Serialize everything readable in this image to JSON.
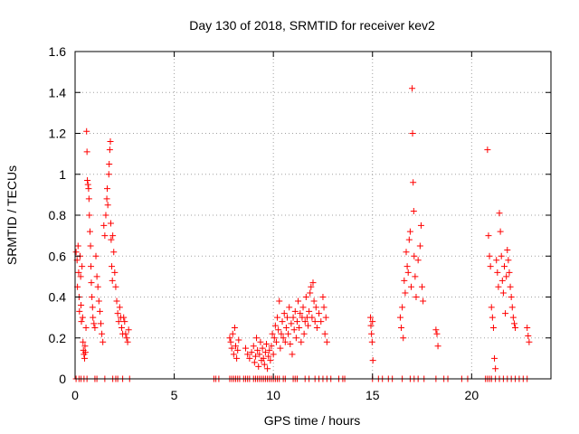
{
  "chart_data": {
    "type": "scatter",
    "title": "Day 130 of 2018, SRMTID for receiver kev2",
    "xlabel": "GPS time / hours",
    "ylabel": "SRMTID / TECUs",
    "xlim": [
      0,
      24
    ],
    "ylim": [
      0,
      1.6
    ],
    "xticks": [
      0,
      5,
      10,
      15,
      20
    ],
    "xtick_labels": [
      "0",
      "5",
      "10",
      "15",
      "20"
    ],
    "yticks": [
      0,
      0.2,
      0.4,
      0.6,
      0.8,
      1,
      1.2,
      1.4,
      1.6
    ],
    "ytick_labels": [
      "0",
      "0.2",
      "0.4",
      "0.6",
      "0.8",
      "1",
      "1.2",
      "1.4",
      "1.6"
    ],
    "grid": true,
    "marker": "+",
    "color": "#ff0000",
    "series": [
      {
        "name": "SRMTID",
        "points": [
          [
            0.05,
            0.62
          ],
          [
            0.1,
            0.58
          ],
          [
            0.12,
            0.45
          ],
          [
            0.15,
            0.65
          ],
          [
            0.18,
            0.52
          ],
          [
            0.2,
            0.4
          ],
          [
            0.22,
            0.33
          ],
          [
            0.25,
            0.6
          ],
          [
            0.28,
            0.5
          ],
          [
            0.3,
            0.36
          ],
          [
            0.32,
            0.28
          ],
          [
            0.35,
            0.55
          ],
          [
            0.38,
            0.3
          ],
          [
            0.4,
            0.18
          ],
          [
            0.42,
            0.14
          ],
          [
            0.45,
            0.12
          ],
          [
            0.48,
            0.1
          ],
          [
            0.5,
            0.16
          ],
          [
            0.52,
            0.13
          ],
          [
            0.55,
            0.25
          ],
          [
            0.58,
            1.21
          ],
          [
            0.6,
            1.11
          ],
          [
            0.62,
            0.97
          ],
          [
            0.65,
            0.95
          ],
          [
            0.68,
            0.93
          ],
          [
            0.7,
            0.88
          ],
          [
            0.72,
            0.8
          ],
          [
            0.75,
            0.72
          ],
          [
            0.78,
            0.65
          ],
          [
            0.8,
            0.55
          ],
          [
            0.82,
            0.47
          ],
          [
            0.85,
            0.4
          ],
          [
            0.88,
            0.35
          ],
          [
            0.9,
            0.3
          ],
          [
            0.95,
            0.27
          ],
          [
            1.0,
            0.25
          ],
          [
            1.05,
            0.6
          ],
          [
            1.1,
            0.5
          ],
          [
            1.15,
            0.45
          ],
          [
            1.2,
            0.38
          ],
          [
            1.25,
            0.33
          ],
          [
            1.3,
            0.27
          ],
          [
            1.35,
            0.22
          ],
          [
            1.4,
            0.18
          ],
          [
            1.45,
            0.75
          ],
          [
            1.5,
            0.7
          ],
          [
            1.55,
            0.8
          ],
          [
            1.6,
            0.88
          ],
          [
            1.62,
            0.93
          ],
          [
            1.65,
            0.85
          ],
          [
            1.7,
            1.0
          ],
          [
            1.72,
            1.05
          ],
          [
            1.75,
            1.12
          ],
          [
            1.78,
            1.16
          ],
          [
            1.8,
            0.76
          ],
          [
            1.82,
            0.68
          ],
          [
            1.85,
            0.55
          ],
          [
            1.88,
            0.48
          ],
          [
            1.9,
            0.7
          ],
          [
            1.95,
            0.62
          ],
          [
            2.0,
            0.52
          ],
          [
            2.05,
            0.45
          ],
          [
            2.1,
            0.38
          ],
          [
            2.15,
            0.32
          ],
          [
            2.2,
            0.28
          ],
          [
            2.25,
            0.35
          ],
          [
            2.3,
            0.3
          ],
          [
            2.35,
            0.25
          ],
          [
            2.4,
            0.22
          ],
          [
            2.45,
            0.3
          ],
          [
            2.5,
            0.28
          ],
          [
            2.55,
            0.22
          ],
          [
            2.6,
            0.2
          ],
          [
            2.65,
            0.18
          ],
          [
            2.7,
            0.24
          ],
          [
            7.8,
            0.2
          ],
          [
            7.85,
            0.18
          ],
          [
            7.9,
            0.15
          ],
          [
            7.95,
            0.22
          ],
          [
            8.0,
            0.12
          ],
          [
            8.05,
            0.25
          ],
          [
            8.1,
            0.16
          ],
          [
            8.15,
            0.1
          ],
          [
            8.2,
            0.14
          ],
          [
            8.25,
            0.19
          ],
          [
            8.6,
            0.15
          ],
          [
            8.7,
            0.12
          ],
          [
            8.8,
            0.1
          ],
          [
            8.9,
            0.13
          ],
          [
            9.0,
            0.16
          ],
          [
            9.05,
            0.08
          ],
          [
            9.1,
            0.11
          ],
          [
            9.15,
            0.2
          ],
          [
            9.2,
            0.14
          ],
          [
            9.25,
            0.06
          ],
          [
            9.3,
            0.12
          ],
          [
            9.35,
            0.18
          ],
          [
            9.4,
            0.09
          ],
          [
            9.45,
            0.15
          ],
          [
            9.5,
            0.1
          ],
          [
            9.55,
            0.07
          ],
          [
            9.6,
            0.13
          ],
          [
            9.65,
            0.17
          ],
          [
            9.7,
            0.05
          ],
          [
            9.75,
            0.11
          ],
          [
            9.8,
            0.14
          ],
          [
            9.85,
            0.09
          ],
          [
            9.9,
            0.16
          ],
          [
            9.95,
            0.22
          ],
          [
            10.0,
            0.12
          ],
          [
            10.05,
            0.2
          ],
          [
            10.1,
            0.26
          ],
          [
            10.15,
            0.18
          ],
          [
            10.2,
            0.3
          ],
          [
            10.25,
            0.24
          ],
          [
            10.3,
            0.38
          ],
          [
            10.35,
            0.15
          ],
          [
            10.4,
            0.22
          ],
          [
            10.45,
            0.28
          ],
          [
            10.5,
            0.2
          ],
          [
            10.55,
            0.32
          ],
          [
            10.6,
            0.18
          ],
          [
            10.65,
            0.25
          ],
          [
            10.7,
            0.3
          ],
          [
            10.75,
            0.22
          ],
          [
            10.8,
            0.35
          ],
          [
            10.85,
            0.17
          ],
          [
            10.9,
            0.27
          ],
          [
            10.95,
            0.12
          ],
          [
            11.0,
            0.3
          ],
          [
            11.05,
            0.24
          ],
          [
            11.1,
            0.33
          ],
          [
            11.15,
            0.2
          ],
          [
            11.2,
            0.28
          ],
          [
            11.25,
            0.38
          ],
          [
            11.3,
            0.25
          ],
          [
            11.35,
            0.32
          ],
          [
            11.4,
            0.18
          ],
          [
            11.45,
            0.3
          ],
          [
            11.5,
            0.35
          ],
          [
            11.55,
            0.22
          ],
          [
            11.6,
            0.28
          ],
          [
            11.65,
            0.4
          ],
          [
            11.7,
            0.3
          ],
          [
            11.75,
            0.26
          ],
          [
            11.8,
            0.33
          ],
          [
            11.85,
            0.42
          ],
          [
            11.9,
            0.45
          ],
          [
            11.95,
            0.3
          ],
          [
            12.0,
            0.47
          ],
          [
            12.05,
            0.38
          ],
          [
            12.1,
            0.28
          ],
          [
            12.15,
            0.35
          ],
          [
            12.2,
            0.25
          ],
          [
            12.3,
            0.32
          ],
          [
            12.4,
            0.28
          ],
          [
            12.5,
            0.4
          ],
          [
            12.55,
            0.35
          ],
          [
            12.6,
            0.22
          ],
          [
            12.65,
            0.3
          ],
          [
            12.7,
            0.18
          ],
          [
            14.9,
            0.3
          ],
          [
            14.92,
            0.26
          ],
          [
            14.95,
            0.22
          ],
          [
            14.98,
            0.18
          ],
          [
            15.0,
            0.28
          ],
          [
            15.02,
            0.09
          ],
          [
            16.4,
            0.3
          ],
          [
            16.45,
            0.25
          ],
          [
            16.5,
            0.35
          ],
          [
            16.55,
            0.2
          ],
          [
            16.6,
            0.48
          ],
          [
            16.65,
            0.42
          ],
          [
            16.7,
            0.62
          ],
          [
            16.75,
            0.55
          ],
          [
            16.8,
            0.52
          ],
          [
            16.85,
            0.68
          ],
          [
            16.9,
            0.72
          ],
          [
            16.95,
            0.45
          ],
          [
            17.0,
            1.42
          ],
          [
            17.02,
            1.2
          ],
          [
            17.05,
            0.96
          ],
          [
            17.08,
            0.82
          ],
          [
            17.1,
            0.6
          ],
          [
            17.15,
            0.5
          ],
          [
            17.2,
            0.4
          ],
          [
            17.3,
            0.58
          ],
          [
            17.4,
            0.65
          ],
          [
            17.45,
            0.75
          ],
          [
            17.5,
            0.45
          ],
          [
            17.55,
            0.38
          ],
          [
            18.2,
            0.24
          ],
          [
            18.25,
            0.22
          ],
          [
            18.3,
            0.16
          ],
          [
            20.8,
            1.12
          ],
          [
            20.85,
            0.7
          ],
          [
            20.9,
            0.6
          ],
          [
            20.95,
            0.55
          ],
          [
            21.0,
            0.35
          ],
          [
            21.05,
            0.3
          ],
          [
            21.1,
            0.25
          ],
          [
            21.15,
            0.1
          ],
          [
            21.2,
            0.05
          ],
          [
            21.25,
            0.58
          ],
          [
            21.3,
            0.52
          ],
          [
            21.35,
            0.45
          ],
          [
            21.4,
            0.81
          ],
          [
            21.45,
            0.72
          ],
          [
            21.5,
            0.6
          ],
          [
            21.55,
            0.48
          ],
          [
            21.6,
            0.42
          ],
          [
            21.65,
            0.55
          ],
          [
            21.7,
            0.32
          ],
          [
            21.75,
            0.5
          ],
          [
            21.8,
            0.63
          ],
          [
            21.85,
            0.58
          ],
          [
            21.9,
            0.52
          ],
          [
            21.95,
            0.45
          ],
          [
            22.0,
            0.4
          ],
          [
            22.05,
            0.35
          ],
          [
            22.1,
            0.3
          ],
          [
            22.15,
            0.27
          ],
          [
            22.2,
            0.25
          ],
          [
            22.8,
            0.25
          ],
          [
            22.85,
            0.21
          ],
          [
            22.9,
            0.18
          ]
        ]
      }
    ],
    "zero_marks_x": [
      0.05,
      0.2,
      0.3,
      0.45,
      0.6,
      1.0,
      1.1,
      1.5,
      1.9,
      2.05,
      2.15,
      2.4,
      2.75,
      7.0,
      7.1,
      7.25,
      7.8,
      7.9,
      8.0,
      8.1,
      8.2,
      8.3,
      8.5,
      8.6,
      8.7,
      8.8,
      9.0,
      9.1,
      9.2,
      9.3,
      9.4,
      9.5,
      9.6,
      9.7,
      9.8,
      9.9,
      10.0,
      10.1,
      10.2,
      10.3,
      10.5,
      10.6,
      11.0,
      11.1,
      11.2,
      11.6,
      11.8,
      12.1,
      12.3,
      12.5,
      12.7,
      12.9,
      13.3,
      13.5,
      13.6,
      15.0,
      15.3,
      15.5,
      15.8,
      16.0,
      16.5,
      16.9,
      17.1,
      17.3,
      17.6,
      18.2,
      18.6,
      18.8,
      19.5,
      19.8,
      20.7,
      20.8,
      20.9,
      21.0,
      21.2,
      21.4,
      21.6,
      21.8,
      22.0,
      22.2,
      22.4,
      22.6,
      22.8
    ]
  }
}
